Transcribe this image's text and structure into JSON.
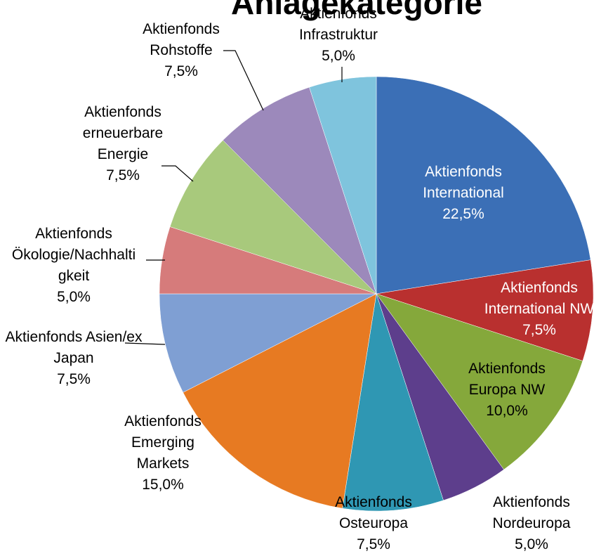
{
  "chart_data": {
    "type": "pie",
    "title": "Anlagekategorie",
    "categories": [
      "Aktienfonds International",
      "Aktienfonds International NW",
      "Aktienfonds Europa NW",
      "Aktienfonds Nordeuropa",
      "Aktienfonds Osteuropa",
      "Aktienfonds Emerging Markets",
      "Aktienfonds Asien/ex Japan",
      "Aktienfonds Ökologie/Nachhaltigkeit",
      "Aktienfonds erneuerbare Energie",
      "Aktienfonds Rohstoffe",
      "Aktienfonds Infrastruktur"
    ],
    "values": [
      22.5,
      7.5,
      10,
      5,
      7.5,
      15,
      7.5,
      5,
      7.5,
      7.5,
      5
    ],
    "value_labels": [
      "22,5%",
      "7,5%",
      "10,0%",
      "5,0%",
      "7,5%",
      "15,0%",
      "7,5%",
      "5,0%",
      "7,5%",
      "7,5%",
      "5,0%"
    ],
    "colors": [
      "#3b6fb6",
      "#b9302f",
      "#85a83b",
      "#5d3e8c",
      "#2f97b3",
      "#e77a22",
      "#7f9fd3",
      "#d67b7b",
      "#a8c97c",
      "#9c89bb",
      "#7fc4dd"
    ]
  }
}
